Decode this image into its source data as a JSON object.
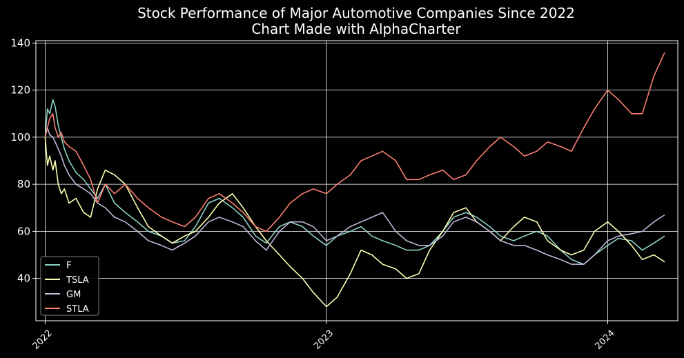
{
  "chart_data": {
    "type": "line",
    "title": "Stock Performance of Major Automotive Companies Since 2022",
    "subtitle": "Chart Made with AlphaCharter",
    "xlabel": "",
    "ylabel": "",
    "x_ticks": [
      "2022",
      "2023",
      "2024"
    ],
    "xlim": [
      "2021-12-20",
      "2024-04-01"
    ],
    "y_ticks": [
      40,
      60,
      80,
      100,
      120,
      140
    ],
    "ylim": [
      22,
      141
    ],
    "grid": true,
    "legend_position": "lower-left",
    "colors": {
      "background": "#000000",
      "foreground": "#ffffff",
      "grid": "#ffffff"
    },
    "series": [
      {
        "name": "F",
        "color": "#8dd3c7",
        "x": [
          "2022-01-01",
          "2022-01-04",
          "2022-01-07",
          "2022-01-11",
          "2022-01-14",
          "2022-01-18",
          "2022-01-22",
          "2022-01-26",
          "2022-02-01",
          "2022-02-10",
          "2022-02-20",
          "2022-03-01",
          "2022-03-10",
          "2022-03-20",
          "2022-04-01",
          "2022-04-15",
          "2022-05-01",
          "2022-05-15",
          "2022-06-01",
          "2022-06-15",
          "2022-07-01",
          "2022-07-15",
          "2022-08-01",
          "2022-08-15",
          "2022-09-01",
          "2022-09-15",
          "2022-10-01",
          "2022-10-15",
          "2022-11-01",
          "2022-11-15",
          "2022-12-01",
          "2022-12-15",
          "2023-01-01",
          "2023-01-15",
          "2023-02-01",
          "2023-02-15",
          "2023-03-01",
          "2023-03-15",
          "2023-04-01",
          "2023-04-15",
          "2023-05-01",
          "2023-05-15",
          "2023-06-01",
          "2023-06-15",
          "2023-07-01",
          "2023-07-15",
          "2023-08-01",
          "2023-08-15",
          "2023-09-01",
          "2023-09-15",
          "2023-10-01",
          "2023-10-15",
          "2023-11-01",
          "2023-11-15",
          "2023-12-01",
          "2023-12-15",
          "2024-01-01",
          "2024-01-15",
          "2024-02-01",
          "2024-02-15",
          "2024-03-01",
          "2024-03-15"
        ],
        "y": [
          100,
          112,
          110,
          116,
          113,
          105,
          100,
          95,
          90,
          85,
          82,
          78,
          74,
          80,
          72,
          68,
          64,
          60,
          58,
          55,
          56,
          62,
          72,
          74,
          70,
          66,
          58,
          55,
          62,
          64,
          62,
          58,
          54,
          58,
          60,
          62,
          58,
          56,
          54,
          52,
          52,
          54,
          60,
          66,
          68,
          66,
          62,
          58,
          56,
          58,
          60,
          58,
          52,
          48,
          46,
          50,
          54,
          57,
          56,
          52,
          55,
          58
        ]
      },
      {
        "name": "TSLA",
        "color": "#ffffb3",
        "x": [
          "2022-01-01",
          "2022-01-04",
          "2022-01-07",
          "2022-01-11",
          "2022-01-14",
          "2022-01-18",
          "2022-01-22",
          "2022-01-26",
          "2022-02-01",
          "2022-02-10",
          "2022-02-20",
          "2022-03-01",
          "2022-03-10",
          "2022-03-20",
          "2022-04-01",
          "2022-04-15",
          "2022-05-01",
          "2022-05-15",
          "2022-06-01",
          "2022-06-15",
          "2022-07-01",
          "2022-07-15",
          "2022-08-01",
          "2022-08-15",
          "2022-09-01",
          "2022-09-15",
          "2022-10-01",
          "2022-10-15",
          "2022-11-01",
          "2022-11-15",
          "2022-12-01",
          "2022-12-15",
          "2023-01-01",
          "2023-01-15",
          "2023-02-01",
          "2023-02-15",
          "2023-03-01",
          "2023-03-15",
          "2023-04-01",
          "2023-04-15",
          "2023-05-01",
          "2023-05-15",
          "2023-06-01",
          "2023-06-15",
          "2023-07-01",
          "2023-07-15",
          "2023-08-01",
          "2023-08-15",
          "2023-09-01",
          "2023-09-15",
          "2023-10-01",
          "2023-10-15",
          "2023-11-01",
          "2023-11-15",
          "2023-12-01",
          "2023-12-15",
          "2024-01-01",
          "2024-01-15",
          "2024-02-01",
          "2024-02-15",
          "2024-03-01",
          "2024-03-15"
        ],
        "y": [
          100,
          88,
          92,
          86,
          90,
          80,
          76,
          78,
          72,
          74,
          68,
          66,
          78,
          86,
          84,
          80,
          70,
          62,
          58,
          55,
          58,
          60,
          66,
          72,
          76,
          70,
          62,
          56,
          50,
          45,
          40,
          34,
          28,
          32,
          42,
          52,
          50,
          46,
          44,
          40,
          42,
          52,
          60,
          68,
          70,
          64,
          60,
          56,
          62,
          66,
          64,
          56,
          52,
          50,
          52,
          60,
          64,
          60,
          54,
          48,
          50,
          47
        ]
      },
      {
        "name": "GM",
        "color": "#bebada",
        "x": [
          "2022-01-01",
          "2022-01-04",
          "2022-01-07",
          "2022-01-11",
          "2022-01-14",
          "2022-01-18",
          "2022-01-22",
          "2022-01-26",
          "2022-02-01",
          "2022-02-10",
          "2022-02-20",
          "2022-03-01",
          "2022-03-10",
          "2022-03-20",
          "2022-04-01",
          "2022-04-15",
          "2022-05-01",
          "2022-05-15",
          "2022-06-01",
          "2022-06-15",
          "2022-07-01",
          "2022-07-15",
          "2022-08-01",
          "2022-08-15",
          "2022-09-01",
          "2022-09-15",
          "2022-10-01",
          "2022-10-15",
          "2022-11-01",
          "2022-11-15",
          "2022-12-01",
          "2022-12-15",
          "2023-01-01",
          "2023-01-15",
          "2023-02-01",
          "2023-02-15",
          "2023-03-01",
          "2023-03-15",
          "2023-04-01",
          "2023-04-15",
          "2023-05-01",
          "2023-05-15",
          "2023-06-01",
          "2023-06-15",
          "2023-07-01",
          "2023-07-15",
          "2023-08-01",
          "2023-08-15",
          "2023-09-01",
          "2023-09-15",
          "2023-10-01",
          "2023-10-15",
          "2023-11-01",
          "2023-11-15",
          "2023-12-01",
          "2023-12-15",
          "2024-01-01",
          "2024-01-15",
          "2024-02-01",
          "2024-02-15",
          "2024-03-01",
          "2024-03-15"
        ],
        "y": [
          100,
          104,
          101,
          100,
          98,
          95,
          92,
          88,
          84,
          80,
          78,
          76,
          72,
          70,
          66,
          64,
          60,
          56,
          54,
          52,
          55,
          58,
          64,
          66,
          64,
          62,
          56,
          52,
          60,
          64,
          64,
          62,
          56,
          58,
          62,
          64,
          66,
          68,
          60,
          56,
          54,
          54,
          58,
          64,
          66,
          64,
          60,
          56,
          54,
          54,
          52,
          50,
          48,
          46,
          46,
          50,
          56,
          58,
          59,
          60,
          64,
          67
        ]
      },
      {
        "name": "STLA",
        "color": "#fb8072",
        "x": [
          "2022-01-01",
          "2022-01-04",
          "2022-01-07",
          "2022-01-11",
          "2022-01-14",
          "2022-01-18",
          "2022-01-22",
          "2022-01-26",
          "2022-02-01",
          "2022-02-10",
          "2022-02-20",
          "2022-03-01",
          "2022-03-10",
          "2022-03-20",
          "2022-04-01",
          "2022-04-15",
          "2022-05-01",
          "2022-05-15",
          "2022-06-01",
          "2022-06-15",
          "2022-07-01",
          "2022-07-15",
          "2022-08-01",
          "2022-08-15",
          "2022-09-01",
          "2022-09-15",
          "2022-10-01",
          "2022-10-15",
          "2022-11-01",
          "2022-11-15",
          "2022-12-01",
          "2022-12-15",
          "2023-01-01",
          "2023-01-15",
          "2023-02-01",
          "2023-02-15",
          "2023-03-01",
          "2023-03-15",
          "2023-04-01",
          "2023-04-15",
          "2023-05-01",
          "2023-05-15",
          "2023-06-01",
          "2023-06-15",
          "2023-07-01",
          "2023-07-15",
          "2023-08-01",
          "2023-08-15",
          "2023-09-01",
          "2023-09-15",
          "2023-10-01",
          "2023-10-15",
          "2023-11-01",
          "2023-11-15",
          "2023-12-01",
          "2023-12-15",
          "2024-01-01",
          "2024-01-15",
          "2024-02-01",
          "2024-02-15",
          "2024-03-01",
          "2024-03-15"
        ],
        "y": [
          100,
          104,
          108,
          110,
          104,
          100,
          102,
          98,
          96,
          94,
          88,
          82,
          72,
          80,
          76,
          80,
          74,
          70,
          66,
          64,
          62,
          66,
          74,
          76,
          72,
          68,
          62,
          60,
          66,
          72,
          76,
          78,
          76,
          80,
          84,
          90,
          92,
          94,
          90,
          82,
          82,
          84,
          86,
          82,
          84,
          90,
          96,
          100,
          96,
          92,
          94,
          98,
          96,
          94,
          104,
          112,
          120,
          116,
          110,
          110,
          126,
          136
        ]
      }
    ]
  }
}
